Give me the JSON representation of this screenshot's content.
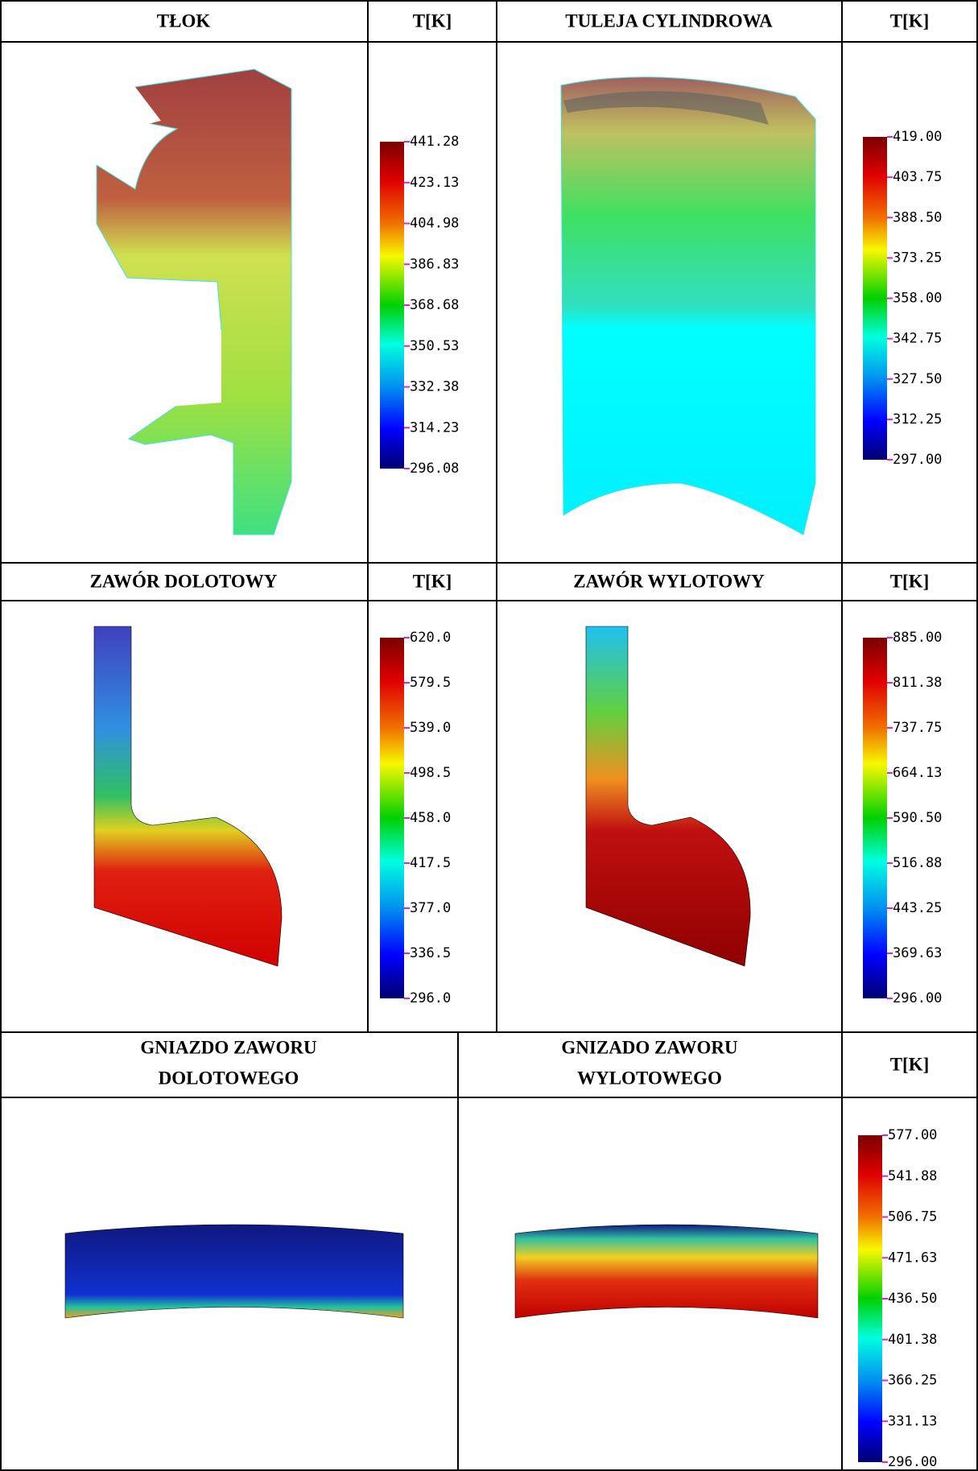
{
  "rows": [
    {
      "panels": [
        {
          "title": "TŁOK",
          "unit": "T[K]",
          "scale": [
            "441.28",
            "423.13",
            "404.98",
            "386.83",
            "368.68",
            "350.53",
            "332.38",
            "314.23",
            "296.08"
          ]
        },
        {
          "title": "TULEJA CYLINDROWA",
          "unit": "T[K]",
          "scale": [
            "419.00",
            "403.75",
            "388.50",
            "373.25",
            "358.00",
            "342.75",
            "327.50",
            "312.25",
            "297.00"
          ]
        }
      ]
    },
    {
      "panels": [
        {
          "title": "ZAWÓR DOLOTOWY",
          "unit": "T[K]",
          "scale": [
            "620.0",
            "579.5",
            "539.0",
            "498.5",
            "458.0",
            "417.5",
            "377.0",
            "336.5",
            "296.0"
          ]
        },
        {
          "title": "ZAWÓR WYLOTOWY",
          "unit": "T[K]",
          "scale": [
            "885.00",
            "811.38",
            "737.75",
            "664.13",
            "590.50",
            "516.88",
            "443.25",
            "369.63",
            "296.00"
          ]
        }
      ]
    },
    {
      "titles": [
        [
          "GNIAZDO ZAWORU",
          "DOLOTOWEGO"
        ],
        [
          "GNIZADO ZAWORU",
          "WYLOTOWEGO"
        ]
      ],
      "unit": "T[K]",
      "scale": [
        "577.00",
        "541.88",
        "506.75",
        "471.63",
        "436.50",
        "401.38",
        "366.25",
        "331.13",
        "296.00"
      ]
    }
  ]
}
